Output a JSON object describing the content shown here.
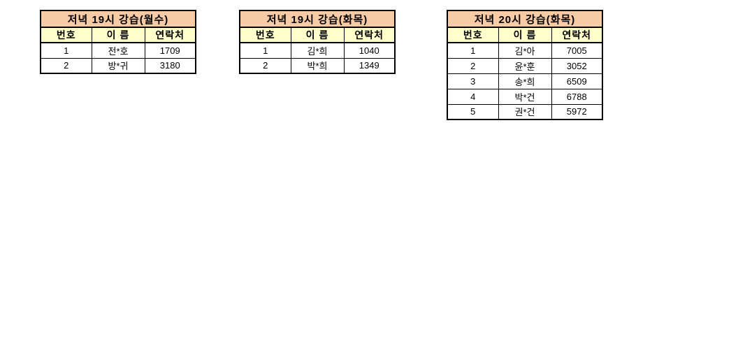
{
  "colors": {
    "title_bg": "#f7cba5",
    "header_bg": "#ffffcc",
    "border": "#000000",
    "text": "#000000",
    "page_bg": "#ffffff"
  },
  "tables": [
    {
      "title": "저녁 19시 강습(월수)",
      "headers": [
        "번호",
        "이 름",
        "연락처"
      ],
      "rows": [
        [
          "1",
          "전*호",
          "1709"
        ],
        [
          "2",
          "방*귀",
          "3180"
        ]
      ]
    },
    {
      "title": "저녁 19시 강습(화목)",
      "headers": [
        "번호",
        "이 름",
        "연락처"
      ],
      "rows": [
        [
          "1",
          "김*희",
          "1040"
        ],
        [
          "2",
          "박*희",
          "1349"
        ]
      ]
    },
    {
      "title": "저녁 20시 강습(화목)",
      "headers": [
        "번호",
        "이 름",
        "연락처"
      ],
      "rows": [
        [
          "1",
          "김*아",
          "7005"
        ],
        [
          "2",
          "윤*훈",
          "3052"
        ],
        [
          "3",
          "송*희",
          "6509"
        ],
        [
          "4",
          "박*건",
          "6788"
        ],
        [
          "5",
          "권*건",
          "5972"
        ]
      ]
    }
  ]
}
